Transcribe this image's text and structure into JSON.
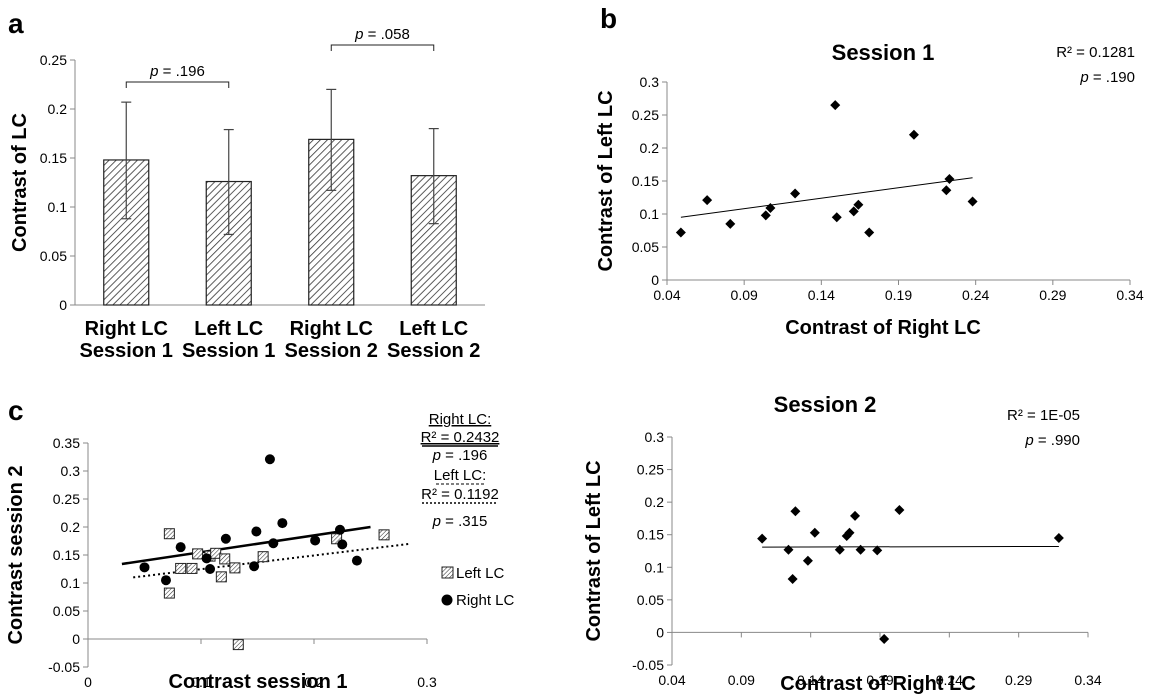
{
  "panels": [
    {
      "label": "a"
    },
    {
      "label": "b"
    },
    {
      "label": "c"
    }
  ],
  "chart_data": [
    {
      "panel": "a",
      "type": "bar",
      "categories": [
        [
          "Right LC",
          "Session 1"
        ],
        [
          "Left LC",
          "Session 1"
        ],
        [
          "Right LC",
          "Session 2"
        ],
        [
          "Left LC",
          "Session 2"
        ]
      ],
      "values": [
        0.148,
        0.126,
        0.169,
        0.132
      ],
      "error_upper": [
        0.207,
        0.179,
        0.22,
        0.18
      ],
      "error_lower": [
        0.088,
        0.072,
        0.117,
        0.083
      ],
      "ylabel": "Contrast  of  LC",
      "xlabel": "",
      "ylim": [
        0,
        0.25
      ],
      "yticks": [
        "0",
        "0.05",
        "0.1",
        "0.15",
        "0.2",
        "0.25"
      ],
      "bar_fill": "hatched",
      "brackets": [
        {
          "from": 0,
          "to": 1,
          "p_italic": "p",
          "p_rest": " = .196"
        },
        {
          "from": 2,
          "to": 3,
          "p_italic": "p",
          "p_rest": " = .058"
        }
      ]
    },
    {
      "panel": "b",
      "type": "scatter",
      "title": "Session 1",
      "xlabel": "Contrast of Right LC",
      "ylabel": "Contrast  of  Left  LC",
      "xlim": [
        0.04,
        0.34
      ],
      "ylim": [
        0,
        0.3
      ],
      "xticks": [
        "0.04",
        "0.09",
        "0.14",
        "0.19",
        "0.24",
        "0.29",
        "0.34"
      ],
      "yticks": [
        "0",
        "0.05",
        "0.1",
        "0.15",
        "0.2",
        "0.25",
        "0.3"
      ],
      "points": [
        [
          0.049,
          0.072
        ],
        [
          0.066,
          0.121
        ],
        [
          0.081,
          0.085
        ],
        [
          0.104,
          0.098
        ],
        [
          0.107,
          0.109
        ],
        [
          0.123,
          0.131
        ],
        [
          0.149,
          0.265
        ],
        [
          0.15,
          0.095
        ],
        [
          0.161,
          0.104
        ],
        [
          0.164,
          0.114
        ],
        [
          0.171,
          0.072
        ],
        [
          0.2,
          0.22
        ],
        [
          0.221,
          0.136
        ],
        [
          0.223,
          0.153
        ],
        [
          0.238,
          0.119
        ]
      ],
      "trendline": {
        "x": [
          0.049,
          0.238
        ],
        "y": [
          0.095,
          0.155
        ]
      },
      "stats": {
        "r2": "R² = 0.1281",
        "p_italic": "p",
        "p_rest": " = .190"
      },
      "marker": "diamond"
    },
    {
      "panel": "b",
      "type": "scatter",
      "title": "Session 2",
      "xlabel": "Contrast of Right LC",
      "ylabel": "Contrast  of  Left  LC",
      "xlim": [
        0.04,
        0.34
      ],
      "ylim": [
        -0.05,
        0.3
      ],
      "xticks": [
        "0.04",
        "0.09",
        "0.14",
        "0.19",
        "0.24",
        "0.29",
        "0.34"
      ],
      "yticks": [
        "-0.05",
        "0",
        "0.05",
        "0.1",
        "0.15",
        "0.2",
        "0.25",
        "0.3"
      ],
      "points": [
        [
          0.105,
          0.144
        ],
        [
          0.124,
          0.127
        ],
        [
          0.127,
          0.082
        ],
        [
          0.129,
          0.186
        ],
        [
          0.138,
          0.11
        ],
        [
          0.143,
          0.153
        ],
        [
          0.161,
          0.127
        ],
        [
          0.166,
          0.148
        ],
        [
          0.168,
          0.153
        ],
        [
          0.172,
          0.179
        ],
        [
          0.176,
          0.127
        ],
        [
          0.188,
          0.126
        ],
        [
          0.193,
          -0.01
        ],
        [
          0.204,
          0.188
        ],
        [
          0.319,
          0.145
        ]
      ],
      "trendline": {
        "x": [
          0.105,
          0.319
        ],
        "y": [
          0.131,
          0.132
        ]
      },
      "stats": {
        "r2": "R² = 1E-05",
        "p_italic": "p",
        "p_rest": " = .990"
      },
      "marker": "diamond"
    },
    {
      "panel": "c",
      "type": "scatter",
      "xlabel": "Contrast session 1",
      "ylabel": "Contrast session 2",
      "xlim": [
        0,
        0.3
      ],
      "ylim": [
        -0.05,
        0.35
      ],
      "xticks": [
        "0",
        "0.1",
        "0.2",
        "0.3"
      ],
      "yticks": [
        "-0.05",
        "0",
        "0.05",
        "0.1",
        "0.15",
        "0.2",
        "0.25",
        "0.3",
        "0.35"
      ],
      "series": [
        {
          "name": "Left LC",
          "marker": "hatched-square",
          "points": [
            [
              0.072,
              0.188
            ],
            [
              0.072,
              0.082
            ],
            [
              0.082,
              0.126
            ],
            [
              0.092,
              0.126
            ],
            [
              0.097,
              0.152
            ],
            [
              0.108,
              0.148
            ],
            [
              0.113,
              0.153
            ],
            [
              0.118,
              0.111
            ],
            [
              0.121,
              0.143
            ],
            [
              0.13,
              0.127
            ],
            [
              0.133,
              -0.01
            ],
            [
              0.155,
              0.147
            ],
            [
              0.22,
              0.179
            ],
            [
              0.262,
              0.186
            ]
          ],
          "trendline": {
            "x": [
              0.04,
              0.285
            ],
            "y": [
              0.11,
              0.17
            ],
            "style": "dotted"
          }
        },
        {
          "name": "Right LC",
          "marker": "circle",
          "points": [
            [
              0.05,
              0.128
            ],
            [
              0.069,
              0.105
            ],
            [
              0.082,
              0.164
            ],
            [
              0.105,
              0.144
            ],
            [
              0.108,
              0.125
            ],
            [
              0.122,
              0.179
            ],
            [
              0.147,
              0.13
            ],
            [
              0.149,
              0.192
            ],
            [
              0.161,
              0.321
            ],
            [
              0.164,
              0.171
            ],
            [
              0.172,
              0.207
            ],
            [
              0.201,
              0.176
            ],
            [
              0.223,
              0.195
            ],
            [
              0.225,
              0.169
            ],
            [
              0.238,
              0.14
            ]
          ],
          "trendline": {
            "x": [
              0.03,
              0.25
            ],
            "y": [
              0.134,
              0.2
            ],
            "style": "solid"
          }
        }
      ],
      "stats_right": {
        "label": "Right LC:",
        "r2": "R² = 0.2432",
        "p_italic": "p",
        "p_rest": " = .196"
      },
      "stats_left": {
        "label": "Left LC:",
        "r2": "R² = 0.1192",
        "p_italic": "p",
        "p_rest": " = .315"
      },
      "legend": [
        "Left LC",
        "Right LC"
      ]
    }
  ]
}
